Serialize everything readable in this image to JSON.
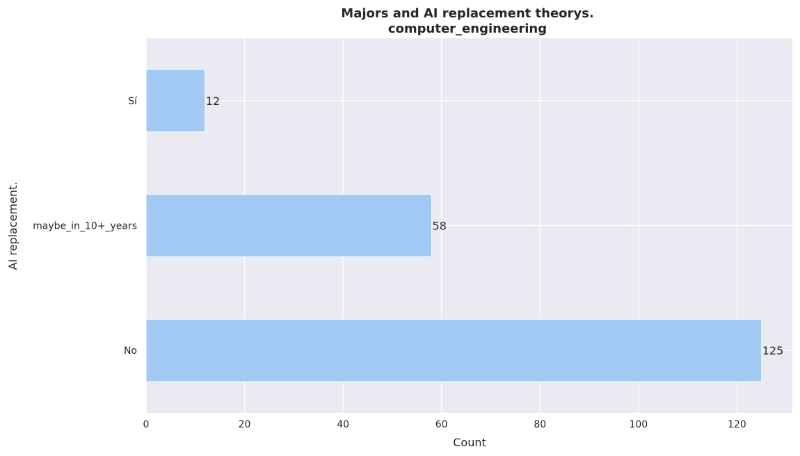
{
  "chart_data": {
    "type": "bar",
    "orientation": "horizontal",
    "title": "Majors and AI replacement theorys.",
    "subtitle": "computer_engineering",
    "xlabel": "Count",
    "ylabel": "AI replacement.",
    "categories": [
      "Sí",
      "maybe_in_10+_years",
      "No"
    ],
    "values": [
      12,
      58,
      125
    ],
    "xlim": [
      0,
      131.25
    ],
    "xticks": [
      0,
      20,
      40,
      60,
      80,
      100,
      120
    ],
    "grid": true,
    "colors": {
      "bar": "#a1c9f4",
      "background": "#eaeaf2",
      "grid": "#ffffff",
      "text": "#262626"
    }
  }
}
